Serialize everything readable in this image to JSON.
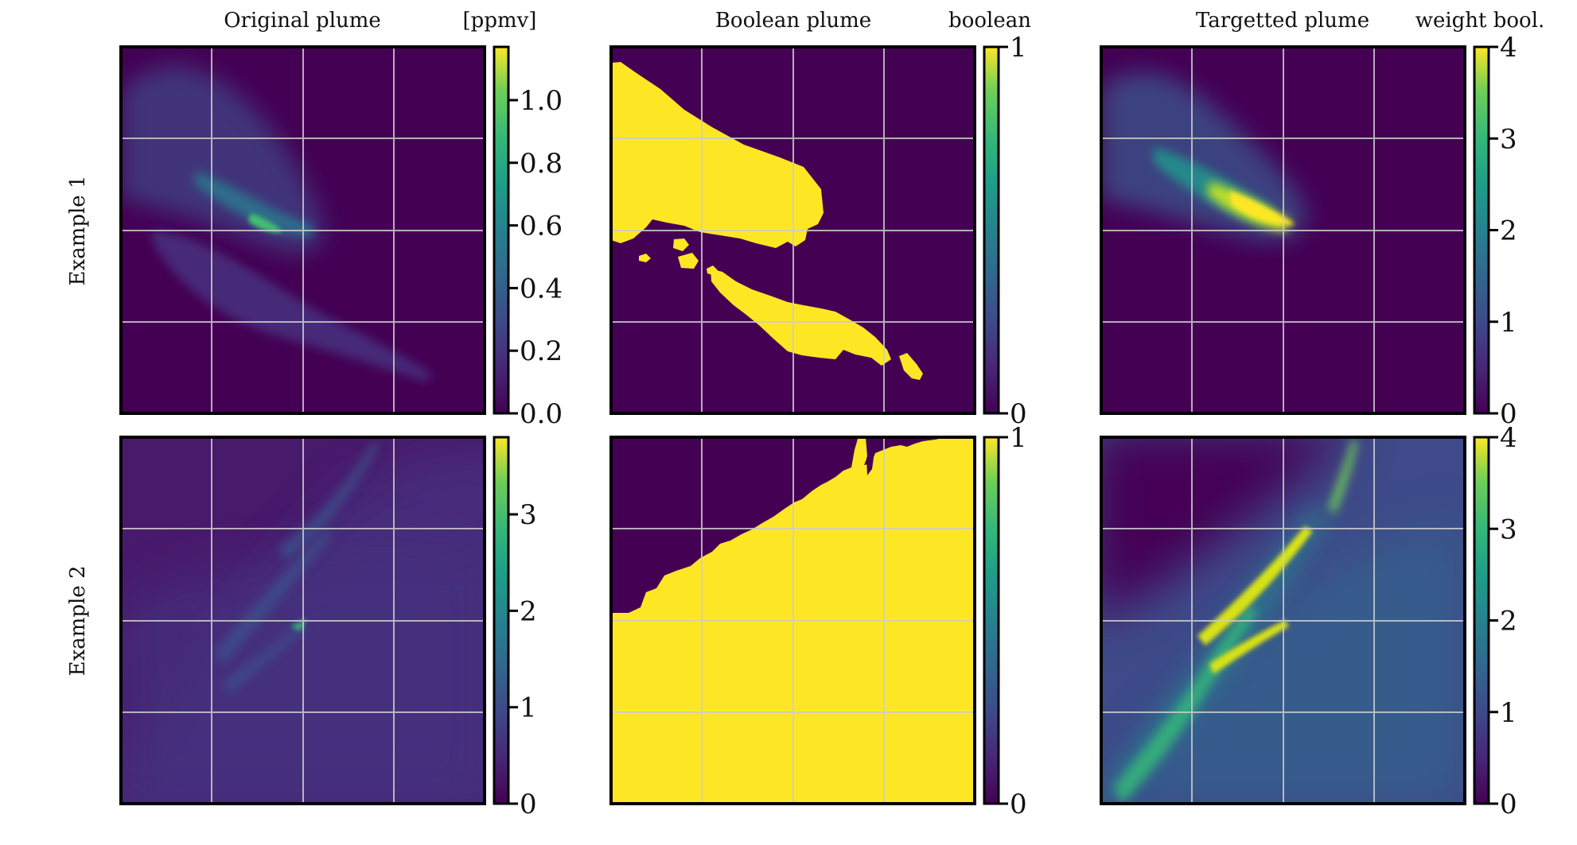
{
  "chart_data": {
    "type": "heatmap",
    "colormap": "viridis",
    "grid": true,
    "axes_ticks_visible": false,
    "columns": [
      {
        "title": "Original plume",
        "unit": "[ppmv]"
      },
      {
        "title": "Boolean plume",
        "unit": "boolean"
      },
      {
        "title": "Targetted plume",
        "unit": "weight bool."
      }
    ],
    "rows": [
      {
        "label": "Example 1"
      },
      {
        "label": "Example 2"
      }
    ],
    "panels": [
      {
        "row": "Example 1",
        "column": "Original plume",
        "clim": [
          0,
          1.17
        ],
        "colorbar_ticks": [
          0.0,
          0.2,
          0.4,
          0.6,
          0.8,
          1.0
        ],
        "colorbar_tick_labels": [
          "0.0",
          "0.2",
          "0.4",
          "0.6",
          "0.8",
          "1.0"
        ],
        "peak_value": 1.17
      },
      {
        "row": "Example 1",
        "column": "Boolean plume",
        "clim": [
          0,
          1
        ],
        "colorbar_ticks": [
          0,
          1
        ],
        "colorbar_tick_labels": [
          "0",
          "1"
        ],
        "values": [
          0,
          1
        ]
      },
      {
        "row": "Example 1",
        "column": "Targetted plume",
        "clim": [
          0,
          4
        ],
        "colorbar_ticks": [
          0,
          1,
          2,
          3,
          4
        ],
        "colorbar_tick_labels": [
          "0",
          "1",
          "2",
          "3",
          "4"
        ],
        "peak_value": 4
      },
      {
        "row": "Example 2",
        "column": "Original plume",
        "clim": [
          0,
          3.8
        ],
        "colorbar_ticks": [
          0,
          1,
          2,
          3
        ],
        "colorbar_tick_labels": [
          "0",
          "1",
          "2",
          "3"
        ],
        "peak_value": 3.8
      },
      {
        "row": "Example 2",
        "column": "Boolean plume",
        "clim": [
          0,
          1
        ],
        "colorbar_ticks": [
          0,
          1
        ],
        "colorbar_tick_labels": [
          "0",
          "1"
        ],
        "values": [
          0,
          1
        ]
      },
      {
        "row": "Example 2",
        "column": "Targetted plume",
        "clim": [
          0,
          4
        ],
        "colorbar_ticks": [
          0,
          1,
          2,
          3,
          4
        ],
        "colorbar_tick_labels": [
          "0",
          "1",
          "2",
          "3",
          "4"
        ],
        "peak_value": 4
      }
    ]
  }
}
